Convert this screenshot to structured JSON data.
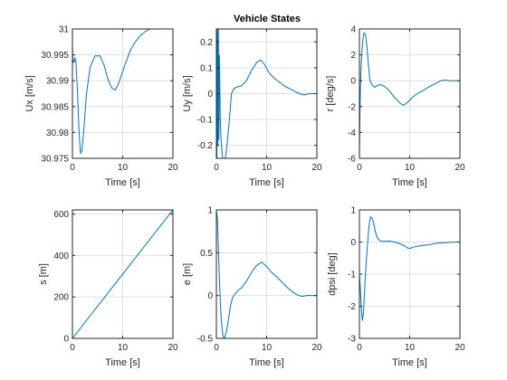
{
  "figure_title": "Vehicle States",
  "colors": {
    "line": "#0072BD",
    "grid": "#dfdfdf",
    "axes": "#262626",
    "background": "#ffffff"
  },
  "chart_data": [
    {
      "type": "line",
      "xlabel": "Time [s]",
      "ylabel": "Ux [m/s]",
      "title": "",
      "xlim": [
        0,
        20
      ],
      "ylim": [
        30.975,
        31
      ],
      "grid": true,
      "xticks": [
        0,
        10,
        20
      ],
      "yticks": [
        30.975,
        30.98,
        30.985,
        30.99,
        30.995,
        31
      ],
      "yticklabels": [
        "30.975",
        "30.98",
        "30.985",
        "30.99",
        "30.995",
        "31"
      ],
      "x": [
        0,
        0.1,
        0.2,
        0.3,
        0.5,
        0.7,
        1.0,
        1.3,
        1.6,
        1.9,
        2.3,
        2.8,
        3.5,
        4.5,
        5.5,
        6.3,
        7.0,
        7.8,
        8.5,
        9.2,
        9.8,
        10.5,
        11.5,
        12.5,
        13.5,
        14.5,
        15.5,
        16.5,
        17.5,
        18.5,
        19.5,
        20
      ],
      "values": [
        30.9965,
        30.9935,
        30.994,
        30.9935,
        30.9945,
        30.9935,
        30.988,
        30.9805,
        30.976,
        30.9765,
        30.981,
        30.9875,
        30.9925,
        30.9948,
        30.9948,
        30.993,
        30.9905,
        30.9886,
        30.9882,
        30.9895,
        30.9912,
        30.9932,
        30.9958,
        30.9975,
        30.9987,
        30.9995,
        31.0,
        31.0006,
        31.0008,
        31.0009,
        31.001,
        31.001
      ]
    },
    {
      "type": "line",
      "xlabel": "Time [s]",
      "ylabel": "Uy [m/s]",
      "title": "Vehicle States",
      "xlim": [
        0,
        20
      ],
      "ylim": [
        -0.25,
        0.25
      ],
      "grid": true,
      "xticks": [
        0,
        10,
        20
      ],
      "yticks": [
        -0.2,
        -0.1,
        0,
        0.1,
        0.2
      ],
      "yticklabels": [
        "-0.2",
        "-0.1",
        "0",
        "0.1",
        "0.2"
      ],
      "x": [
        0,
        0.1,
        0.2,
        0.3,
        0.4,
        0.5,
        0.6,
        0.8,
        1.0,
        1.3,
        1.6,
        2.0,
        2.5,
        3.0,
        3.5,
        4.0,
        5.0,
        6.0,
        7.0,
        8.0,
        8.8,
        9.5,
        10.5,
        11.5,
        12.5,
        13.5,
        14.5,
        15.5,
        16.5,
        17.5,
        18.5,
        19.5,
        20
      ],
      "values": [
        0.27,
        -0.25,
        0.25,
        -0.2,
        0.26,
        -0.18,
        0.15,
        -0.12,
        -0.2,
        -0.26,
        -0.27,
        -0.22,
        -0.12,
        0.0,
        0.02,
        0.025,
        0.03,
        0.05,
        0.09,
        0.12,
        0.13,
        0.115,
        0.08,
        0.06,
        0.045,
        0.03,
        0.02,
        0.01,
        0.0,
        -0.005,
        0.0,
        0.0,
        0.0
      ]
    },
    {
      "type": "line",
      "xlabel": "Time [s]",
      "ylabel": "r [deg/s]",
      "title": "",
      "xlim": [
        0,
        20
      ],
      "ylim": [
        -6,
        4
      ],
      "grid": true,
      "xticks": [
        0,
        10,
        20
      ],
      "yticks": [
        -6,
        -4,
        -2,
        0,
        2,
        4
      ],
      "yticklabels": [
        "-6",
        "-4",
        "-2",
        "0",
        "2",
        "4"
      ],
      "x": [
        0,
        0.1,
        0.2,
        0.35,
        0.5,
        0.7,
        0.9,
        1.2,
        1.5,
        1.8,
        2.1,
        2.5,
        3.0,
        3.5,
        4.0,
        4.6,
        5.2,
        6.0,
        7.0,
        8.0,
        8.7,
        9.5,
        10.5,
        11.5,
        12.5,
        13.5,
        14.5,
        15.5,
        16.2,
        17.0,
        18.0,
        19.0,
        20
      ],
      "values": [
        -5.8,
        -2.5,
        -0.5,
        1.2,
        2.2,
        3.2,
        3.7,
        3.6,
        2.6,
        1.2,
        0.0,
        -0.3,
        -0.5,
        -0.4,
        -0.3,
        -0.35,
        -0.5,
        -0.8,
        -1.3,
        -1.7,
        -1.9,
        -1.7,
        -1.3,
        -1.0,
        -0.8,
        -0.55,
        -0.35,
        -0.15,
        0.0,
        0.05,
        0.0,
        0.0,
        0.0
      ]
    },
    {
      "type": "line",
      "xlabel": "Time [s]",
      "ylabel": "s [m]",
      "title": "",
      "xlim": [
        0,
        20
      ],
      "ylim": [
        0,
        620
      ],
      "grid": true,
      "xticks": [
        0,
        10,
        20
      ],
      "yticks": [
        0,
        200,
        400,
        600
      ],
      "yticklabels": [
        "0",
        "200",
        "400",
        "600"
      ],
      "x": [
        0,
        20
      ],
      "values": [
        0,
        620
      ]
    },
    {
      "type": "line",
      "xlabel": "Time [s]",
      "ylabel": "e [m]",
      "title": "",
      "xlim": [
        0,
        20
      ],
      "ylim": [
        -0.5,
        1
      ],
      "grid": true,
      "xticks": [
        0,
        10,
        20
      ],
      "yticks": [
        -0.5,
        0,
        0.5,
        1
      ],
      "yticklabels": [
        "-0.5",
        "0",
        "0.5",
        "1"
      ],
      "x": [
        0,
        0.2,
        0.4,
        0.6,
        0.8,
        1.0,
        1.3,
        1.6,
        2.0,
        2.4,
        2.8,
        3.2,
        3.6,
        4.0,
        4.5,
        5.0,
        6.0,
        7.0,
        8.0,
        9.0,
        10.0,
        11.0,
        12.0,
        13.0,
        14.0,
        15.0,
        16.0,
        17.0,
        18.0,
        19.0,
        20
      ],
      "values": [
        1.0,
        0.9,
        0.55,
        0.2,
        -0.1,
        -0.3,
        -0.47,
        -0.5,
        -0.42,
        -0.28,
        -0.12,
        -0.03,
        0.01,
        0.04,
        0.07,
        0.09,
        0.17,
        0.27,
        0.35,
        0.39,
        0.34,
        0.27,
        0.22,
        0.16,
        0.1,
        0.05,
        0.01,
        -0.01,
        0.0,
        0.0,
        0.0
      ]
    },
    {
      "type": "line",
      "xlabel": "Time [s]",
      "ylabel": "dpsi [deg]",
      "title": "",
      "xlim": [
        0,
        20
      ],
      "ylim": [
        -3,
        1
      ],
      "grid": true,
      "xticks": [
        0,
        10,
        20
      ],
      "yticks": [
        -3,
        -2,
        -1,
        0,
        1
      ],
      "yticklabels": [
        "-3",
        "-2",
        "-1",
        "0",
        "1"
      ],
      "x": [
        0,
        0.2,
        0.4,
        0.6,
        0.8,
        1.0,
        1.2,
        1.4,
        1.6,
        1.8,
        2.0,
        2.2,
        2.5,
        2.8,
        3.2,
        3.6,
        4.0,
        4.5,
        5.0,
        6.0,
        7.0,
        8.0,
        9.0,
        9.5,
        10.0,
        11.0,
        12.0,
        13.0,
        14.0,
        15.0,
        16.0,
        17.0,
        18.0,
        19.0,
        20
      ],
      "values": [
        -1.0,
        -1.5,
        -2.1,
        -2.45,
        -2.2,
        -1.6,
        -1.0,
        -0.5,
        -0.1,
        0.3,
        0.6,
        0.78,
        0.75,
        0.6,
        0.3,
        0.12,
        0.05,
        0.02,
        0.02,
        0.03,
        0.0,
        -0.05,
        -0.12,
        -0.18,
        -0.2,
        -0.15,
        -0.12,
        -0.1,
        -0.08,
        -0.05,
        -0.03,
        -0.02,
        -0.01,
        0.0,
        0.0
      ]
    }
  ]
}
